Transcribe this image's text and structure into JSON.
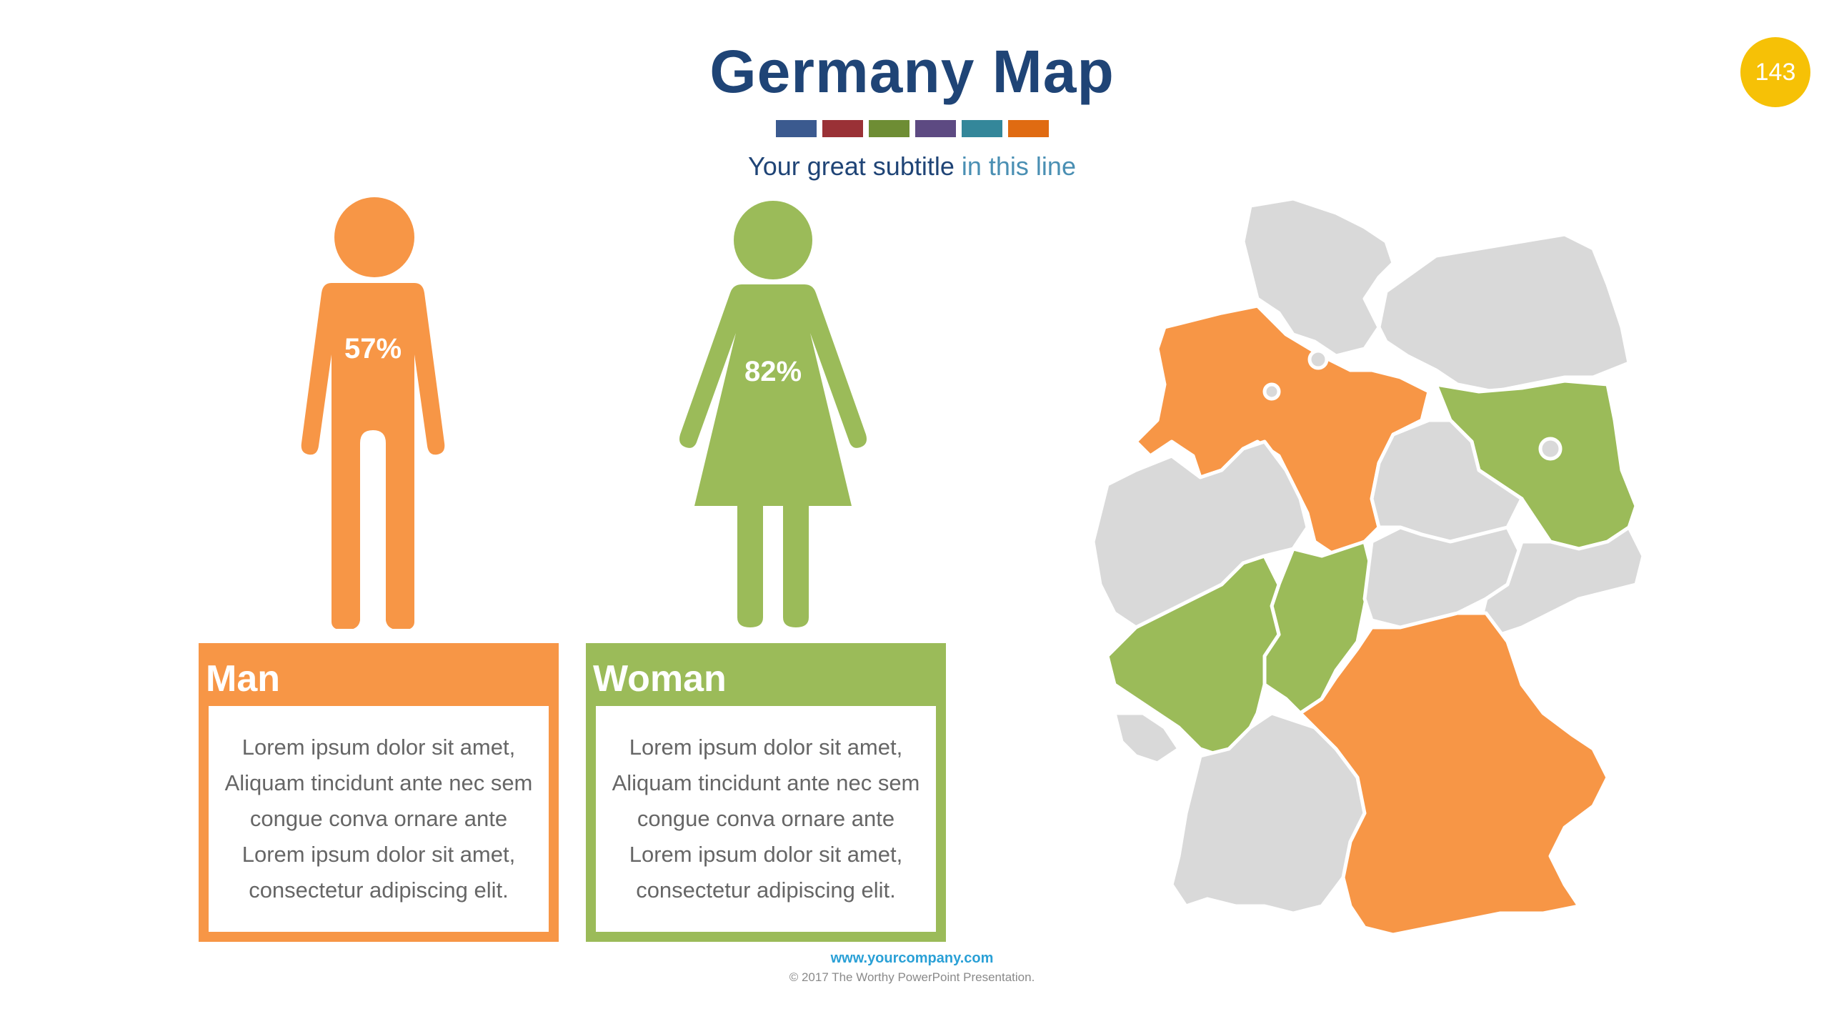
{
  "title": "Germany Map",
  "subtitle": {
    "main": "Your great subtitle",
    "highlight": "in this line"
  },
  "swatch_colors": [
    "#3b5a8f",
    "#9a3136",
    "#6e8d34",
    "#5d4a82",
    "#34879a",
    "#e06b12"
  ],
  "page_number": "143",
  "man": {
    "percent": "57%",
    "title": "Man",
    "color": "#f79646",
    "lines": [
      "Lorem ipsum dolor sit amet,",
      "Aliquam tincidunt ante nec sem",
      "congue conva ornare ante",
      "Lorem ipsum dolor sit amet,",
      "consectetur adipiscing elit."
    ]
  },
  "woman": {
    "percent": "82%",
    "title": "Woman",
    "color": "#9bbb59",
    "lines": [
      "Lorem ipsum dolor sit amet,",
      "Aliquam tincidunt ante nec sem",
      "congue conva ornare ante",
      "Lorem ipsum dolor sit amet,",
      "consectetur adipiscing elit."
    ]
  },
  "map": {
    "colors": {
      "default": "#d9d9d9",
      "orange": "#f79646",
      "green": "#9bbb59",
      "border": "#ffffff"
    },
    "highlighted_orange": [
      "Lower Saxony",
      "Bavaria"
    ],
    "highlighted_green": [
      "Brandenburg",
      "Hesse",
      "Rhineland-Palatinate"
    ]
  },
  "footer": {
    "url": "www.yourcompany.com",
    "copyright": "© 2017 The Worthy PowerPoint Presentation."
  }
}
